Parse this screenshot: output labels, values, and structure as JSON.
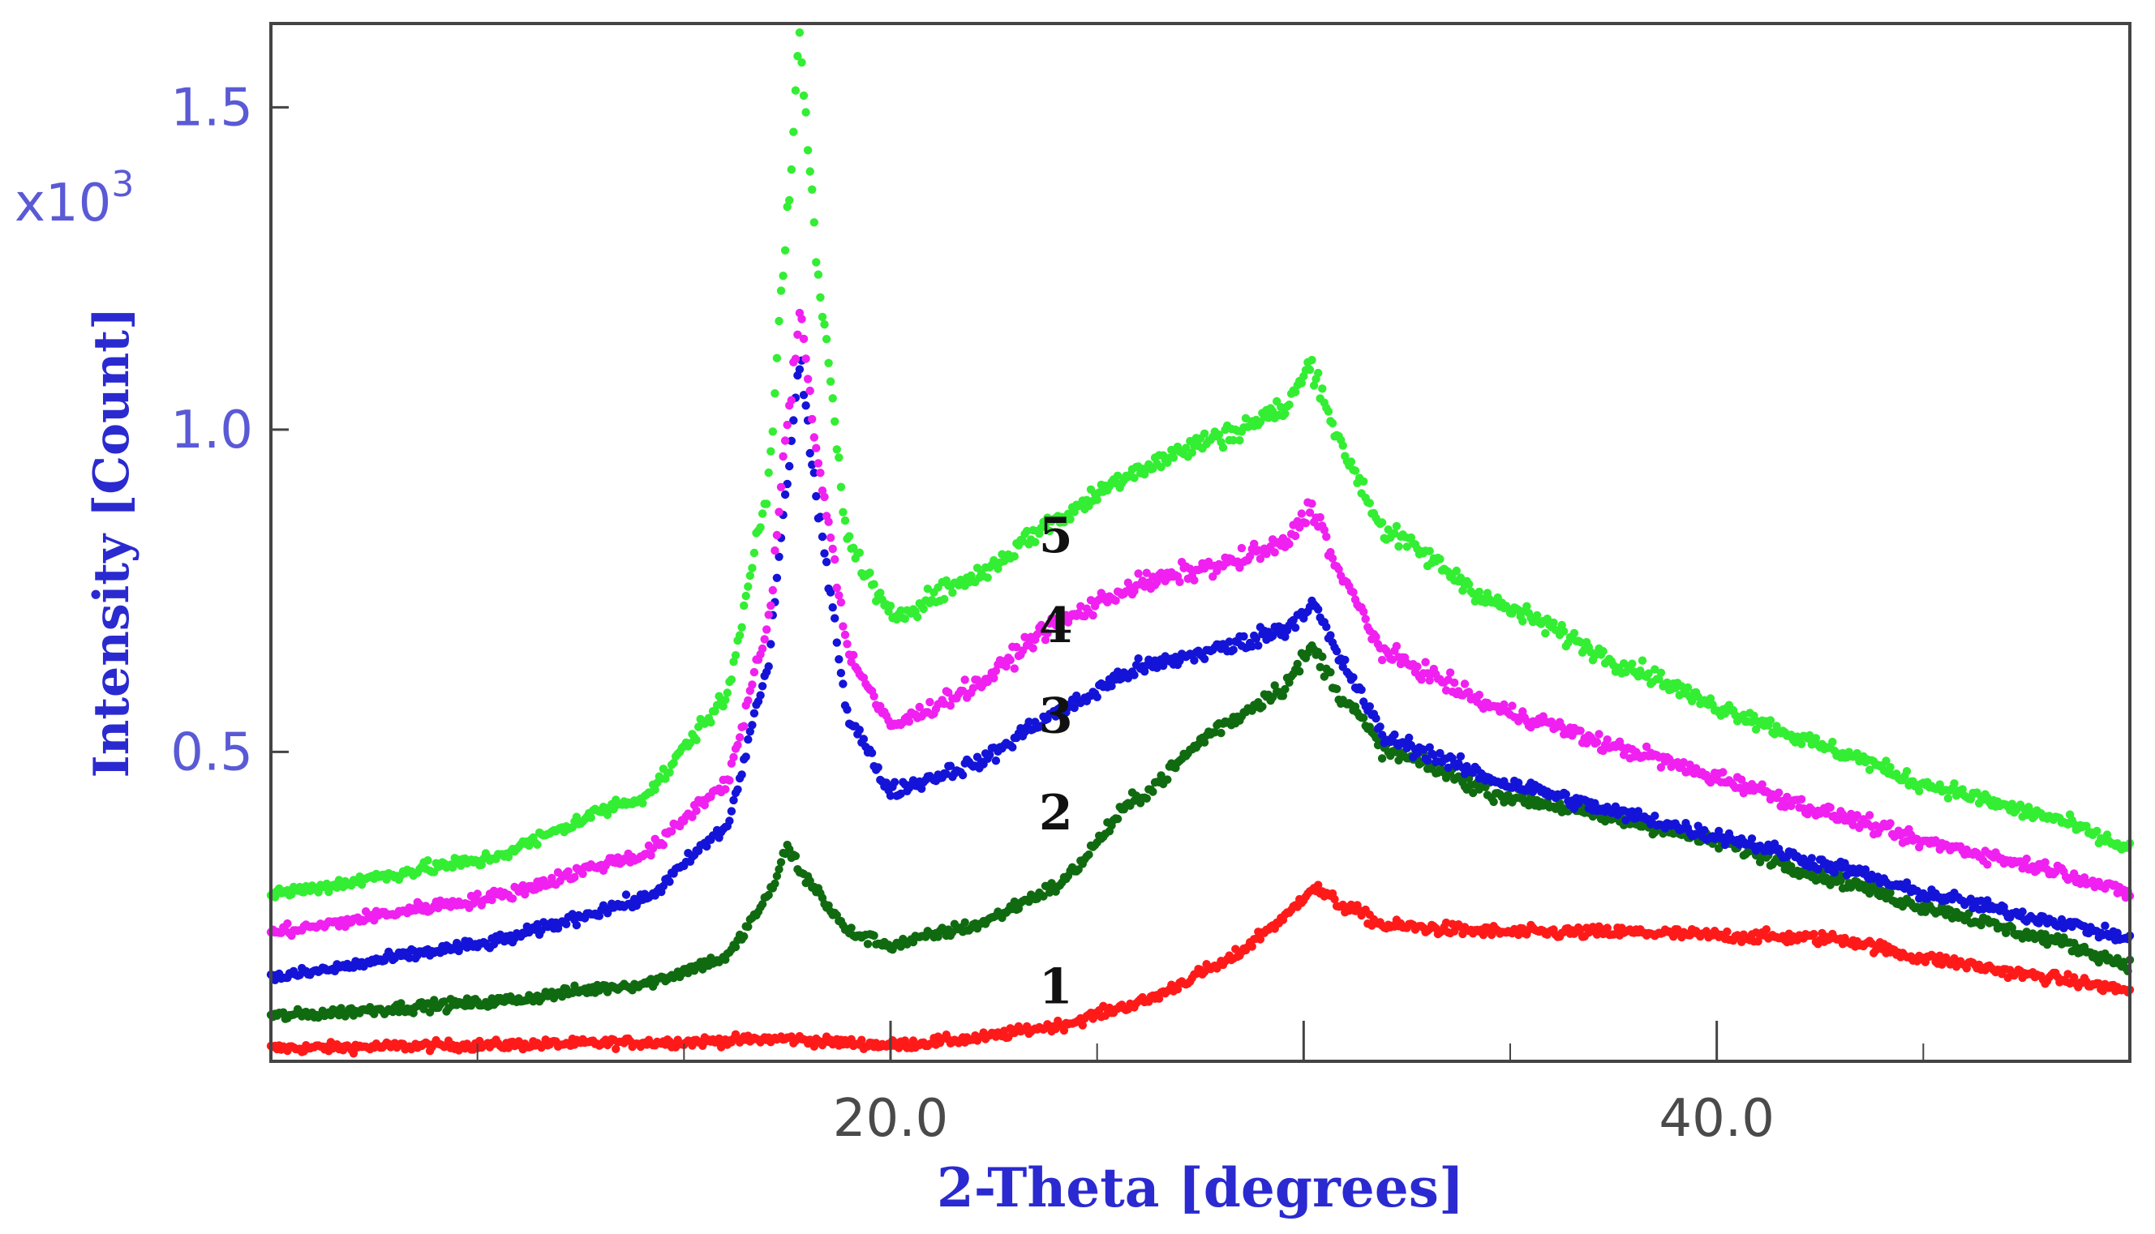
{
  "chart_data": {
    "type": "scatter",
    "title": "",
    "xlabel": "2-Theta [degrees]",
    "ylabel": "Intensity [Count]",
    "y_multiplier_label": "x10",
    "y_multiplier_exponent": "3",
    "xlim": [
      5,
      50
    ],
    "ylim": [
      0.02,
      1.63
    ],
    "x_ticks": [
      20,
      30,
      40
    ],
    "x_tick_labels": [
      "20.0",
      "",
      "40.0"
    ],
    "y_ticks": [
      0.5,
      1.0,
      1.5
    ],
    "y_tick_labels": [
      "0.5",
      "1.0",
      "1.5"
    ],
    "grid": false,
    "legend": "none",
    "series": [
      {
        "label": "1",
        "color": "#ff1a1a",
        "x": [
          5,
          10,
          15,
          17.5,
          18.5,
          20,
          22,
          24,
          26,
          28,
          29.5,
          30.2,
          31,
          32,
          35,
          38,
          40,
          43,
          45,
          48,
          50
        ],
        "y": [
          0.04,
          0.045,
          0.05,
          0.055,
          0.05,
          0.045,
          0.055,
          0.075,
          0.11,
          0.17,
          0.24,
          0.29,
          0.26,
          0.23,
          0.22,
          0.22,
          0.215,
          0.21,
          0.18,
          0.15,
          0.13
        ]
      },
      {
        "label": "2",
        "color": "#106b10",
        "x": [
          5,
          10,
          14,
          16,
          17,
          17.5,
          18,
          19,
          20,
          22,
          24,
          26,
          28,
          29.5,
          30.2,
          31,
          32,
          35,
          38,
          40,
          43,
          45,
          48,
          50
        ],
        "y": [
          0.09,
          0.11,
          0.14,
          0.18,
          0.27,
          0.35,
          0.3,
          0.22,
          0.2,
          0.23,
          0.29,
          0.43,
          0.54,
          0.6,
          0.66,
          0.58,
          0.5,
          0.43,
          0.39,
          0.36,
          0.3,
          0.26,
          0.21,
          0.17
        ]
      },
      {
        "label": "3",
        "color": "#1414d8",
        "x": [
          5,
          10,
          14,
          16,
          17,
          17.5,
          17.8,
          18.3,
          19,
          20,
          22,
          24,
          26,
          28,
          29.5,
          30.2,
          31,
          32,
          35,
          38,
          40,
          43,
          45,
          48,
          50
        ],
        "y": [
          0.15,
          0.2,
          0.27,
          0.38,
          0.62,
          0.92,
          1.1,
          0.85,
          0.55,
          0.44,
          0.48,
          0.56,
          0.63,
          0.66,
          0.69,
          0.73,
          0.63,
          0.52,
          0.45,
          0.4,
          0.37,
          0.32,
          0.28,
          0.24,
          0.21
        ]
      },
      {
        "label": "4",
        "color": "#f020f0",
        "x": [
          5,
          10,
          14,
          16,
          17,
          17.5,
          17.8,
          18.3,
          19,
          20,
          22,
          24,
          26,
          28,
          29.5,
          30.2,
          31,
          32,
          35,
          38,
          40,
          43,
          45,
          48,
          50
        ],
        "y": [
          0.22,
          0.27,
          0.34,
          0.45,
          0.68,
          1.0,
          1.18,
          0.93,
          0.65,
          0.54,
          0.6,
          0.7,
          0.76,
          0.79,
          0.82,
          0.88,
          0.76,
          0.65,
          0.56,
          0.5,
          0.46,
          0.4,
          0.36,
          0.32,
          0.28
        ]
      },
      {
        "label": "5",
        "color": "#33ee33",
        "x": [
          5,
          10,
          14,
          16,
          17,
          17.5,
          17.8,
          18.3,
          19,
          20,
          22,
          24,
          26,
          28,
          29.5,
          30.2,
          31,
          32,
          35,
          38,
          40,
          43,
          45,
          48,
          50
        ],
        "y": [
          0.28,
          0.33,
          0.43,
          0.58,
          0.9,
          1.32,
          1.6,
          1.2,
          0.82,
          0.71,
          0.77,
          0.86,
          0.94,
          0.99,
          1.03,
          1.1,
          0.96,
          0.84,
          0.72,
          0.63,
          0.57,
          0.5,
          0.45,
          0.4,
          0.35
        ]
      }
    ],
    "annotations": [
      {
        "text": "1",
        "x": 24,
        "y": 0.11
      },
      {
        "text": "2",
        "x": 24,
        "y": 0.38
      },
      {
        "text": "3",
        "x": 24,
        "y": 0.53
      },
      {
        "text": "4",
        "x": 24,
        "y": 0.67
      },
      {
        "text": "5",
        "x": 24,
        "y": 0.81
      }
    ]
  }
}
